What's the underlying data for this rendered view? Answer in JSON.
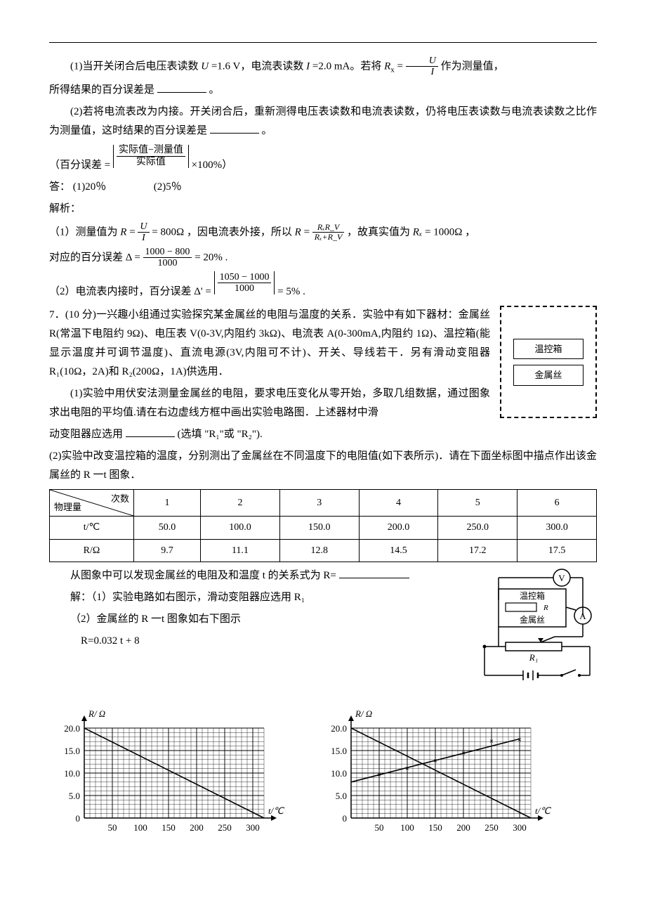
{
  "q6": {
    "line1_a": "(1)当开关闭合后电压表读数 ",
    "line1_U": "U",
    "line1_b": "=1.6 V，电流表读数 ",
    "line1_I": "I",
    "line1_c": "=2.0 mA。若将 ",
    "Rx": "R",
    "Rx_sub": "x",
    "eq1_mid": " = ",
    "frac1_num": "U",
    "frac1_den": "I",
    "line1_d": " 作为测量值，",
    "line2": "所得结果的百分误差是",
    "line2_end": "。",
    "line3": "(2)若将电流表改为内接。开关闭合后，重新测得电压表读数和电流表读数，仍将电压表读数与电流表读数之比作为测量值，这时结果的百分误差是",
    "line3_end": "。",
    "err_label_a": "（百分误差 = ",
    "err_frac_num": "实际值−测量值",
    "err_frac_den": "实际值",
    "err_label_b": " ×100%）",
    "ans_label": "答：",
    "ans1": "(1)20％",
    "ans2": "(2)5％",
    "jiexi": "解析：",
    "s1_a": "（1）测量值为 ",
    "s1_R": "R",
    "s1_eq": " = ",
    "s1_frac_num": "U",
    "s1_frac_den": "I",
    "s1_b": " = 800Ω ，因电流表外接，所以 ",
    "s1_R2": "R",
    "s1_eq2": " = ",
    "s1_frac2_num": "RₓR_V",
    "s1_frac2_den": "Rₓ+R_V",
    "s1_c": " ，故真实值为 ",
    "s1_Rx": "Rₓ",
    "s1_d": " = 1000Ω ，",
    "s2_a": "对应的百分误差 Δ = ",
    "s2_frac_num": "1000 − 800",
    "s2_frac_den": "1000",
    "s2_b": " = 20% .",
    "s3_a": "（2）电流表内接时，百分误差 Δ' = ",
    "s3_frac_num": "1050 − 1000",
    "s3_frac_den": "1000",
    "s3_b": " = 5% ."
  },
  "q7": {
    "p1": "7．(10 分)一兴趣小组通过实验探究某金属丝的电阻与温度的关系．实验中有如下器材：金属丝 R(常温下电阻约 9Ω)、电压表 V(0-3V,内阻约 3kΩ)、电流表 A(0-300mA,内阻约 1Ω)、温控箱(能显示温度并可调节温度)、直流电源(3V,内阻可不计)、开关、导线若干．另有滑动变阻器 R₁(10Ω，2A)和 R₂(200Ω，1A)供选用．",
    "p1b": "(1)实验中用伏安法测量金属丝的电阻，要求电压变化从零开始，多取几组数据，通过图象求出电阻的平均值.请在右边虚线方框中画出实验电路图．上述器材中滑",
    "p2a": "动变阻器应选用",
    "p2b": "(选填 \"R₁\"或 \"R₂\").",
    "p3": "(2)实验中改变温控箱的温度，分别测出了金属丝在不同温度下的电阻值(如下表所示)．请在下面坐标图中描点作出该金属丝的 R 一t 图象．",
    "box_label1": "温控箱",
    "box_label2": "金属丝",
    "table": {
      "diag_top": "次数",
      "diag_bot": "物理量",
      "cols": [
        "1",
        "2",
        "3",
        "4",
        "5",
        "6"
      ],
      "row1_label": "t/℃",
      "row1": [
        "50.0",
        "100.0",
        "150.0",
        "200.0",
        "250.0",
        "300.0"
      ],
      "row2_label": "R/Ω",
      "row2": [
        "9.7",
        "11.1",
        "12.8",
        "14.5",
        "17.2",
        "17.5"
      ]
    },
    "after_table_a": "从图象中可以发现金属丝的电阻及和温度 t 的关系式为 R=",
    "sol1": "解：（1）实验电路如右图示，滑动变阻器应选用 R₁",
    "sol2": "（2）金属丝的 R 一t 图象如右下图示",
    "sol3": "R=0.032 t + 8",
    "circuit": {
      "V": "V",
      "A": "A",
      "box1": "温控箱",
      "R": "R",
      "box2": "金属丝",
      "R1": "R₁"
    }
  },
  "chart": {
    "ylabel": "R/ Ω",
    "xlabel": "t/℃",
    "yticks": [
      "0",
      "5.0",
      "10.0",
      "15.0",
      "20.0"
    ],
    "xticks": [
      "50",
      "100",
      "150",
      "200",
      "250",
      "300"
    ],
    "ylim": [
      0,
      20
    ],
    "xlim": [
      0,
      320
    ],
    "grid_major_x": 50,
    "grid_major_y": 5,
    "grid_minor_div": 5,
    "line_color": "#000000",
    "grid_color": "#000000",
    "background": "#ffffff",
    "chart1_descending_line": {
      "y_at_x0": 20,
      "y_at_x320": 0
    },
    "chart2_lines": {
      "descending": {
        "y_at_x0": 20,
        "y_at_x320": 0
      },
      "ascending": {
        "y_at_x0": 8,
        "y_at_x300": 17.6
      }
    }
  }
}
